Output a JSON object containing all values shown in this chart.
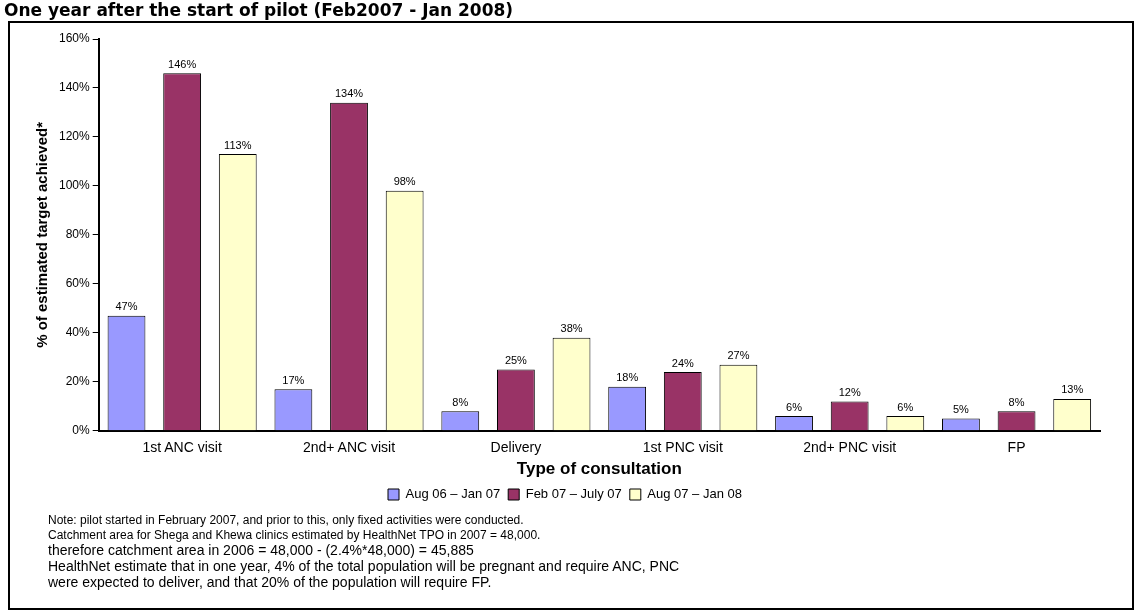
{
  "chart_data": {
    "type": "bar",
    "title": "One year after the start of pilot (Feb2007 - Jan 2008)",
    "xlabel": "Type of consultation",
    "ylabel": "% of estimated target achieved*",
    "categories": [
      "1st ANC visit",
      "2nd+ ANC visit",
      "Delivery",
      "1st PNC visit",
      "2nd+ PNC visit",
      "FP"
    ],
    "series": [
      {
        "name": "Aug 06 – Jan 07",
        "color": "#9999ff",
        "values": [
          47,
          17,
          8,
          18,
          6,
          5
        ],
        "value_labels": [
          "47%",
          "17%",
          "8%",
          "18%",
          "6%",
          "5%"
        ]
      },
      {
        "name": "Feb 07 – July 07",
        "color": "#993366",
        "values": [
          146,
          134,
          25,
          24,
          12,
          8
        ],
        "value_labels": [
          "146%",
          "134%",
          "25%",
          "24%",
          "12%",
          "8%"
        ]
      },
      {
        "name": "Aug 07 – Jan 08",
        "color": "#ffffcc",
        "values": [
          113,
          98,
          38,
          27,
          6,
          13
        ],
        "value_labels": [
          "113%",
          "98%",
          "38%",
          "27%",
          "6%",
          "13%"
        ]
      }
    ],
    "ylim": [
      0,
      160
    ],
    "yticks": [
      {
        "value": 0,
        "label": "0%"
      },
      {
        "value": 20,
        "label": "20%"
      },
      {
        "value": 40,
        "label": "40%"
      },
      {
        "value": 60,
        "label": "60%"
      },
      {
        "value": 80,
        "label": "80%"
      },
      {
        "value": 100,
        "label": "100%"
      },
      {
        "value": 120,
        "label": "120%"
      },
      {
        "value": 140,
        "label": "140%"
      },
      {
        "value": 160,
        "label": "160%"
      }
    ],
    "grid": false,
    "legend": "bottom",
    "annotations": [
      "Note: pilot started in February 2007, and prior to this, only fixed activities were conducted.",
      "Catchment area for Shega and Khewa clinics estimated by HealthNet TPO in 2007 = 48,000.",
      "therefore catchment area in 2006 = 48,000 - (2.4%*48,000) = 45,885",
      "HealthNet estimate that in one year, 4% of the total population will be pregnant and require ANC, PNC",
      "were expected to deliver, and that 20% of the population will require FP."
    ]
  }
}
